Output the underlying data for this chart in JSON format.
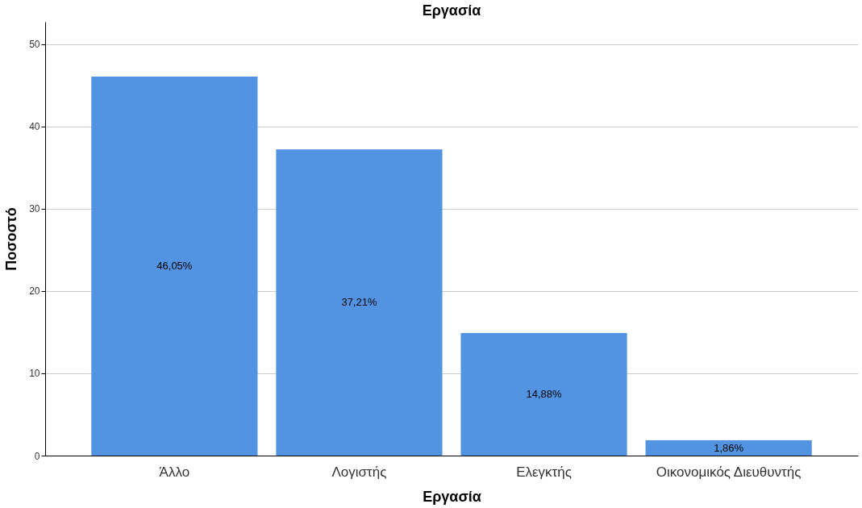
{
  "chart_data": {
    "type": "bar",
    "title": "Εργασία",
    "xlabel": "Εργασία",
    "ylabel": "Ποσοστό",
    "categories": [
      "Άλλο",
      "Λογιστής",
      "Ελεγκτής",
      "Οικονομικός Διευθυντής"
    ],
    "values": [
      46.05,
      37.21,
      14.88,
      1.86
    ],
    "value_labels": [
      "46,05%",
      "37,21%",
      "14,88%",
      "1,86%"
    ],
    "color": "#5294e2",
    "ylim": [
      0,
      52.7
    ],
    "yticks": [
      0,
      10,
      20,
      30,
      40,
      50
    ],
    "grid": "y"
  }
}
